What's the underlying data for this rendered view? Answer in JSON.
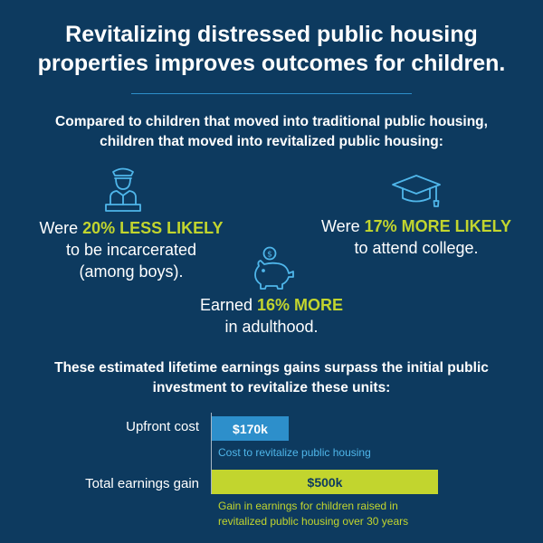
{
  "header": {
    "title_line1": "Revitalizing distressed public housing",
    "title_line2": "properties improves outcomes for children."
  },
  "intro": {
    "line1": "Compared to children that moved into traditional public housing,",
    "line2": "children that moved into revitalized public housing:"
  },
  "stats": {
    "incarceration": {
      "icon": "police-officer-icon",
      "prefix": "Were ",
      "highlight": "20% LESS LIKELY",
      "line2": "to be incarcerated",
      "line3": "(among boys)."
    },
    "college": {
      "icon": "graduation-cap-icon",
      "prefix": "Were ",
      "highlight": "17% MORE LIKELY",
      "line2": "to attend college."
    },
    "earnings": {
      "icon": "piggy-bank-icon",
      "prefix": "Earned ",
      "highlight": "16% MORE",
      "line2": "in adulthood."
    }
  },
  "summary": {
    "line1": "These estimated lifetime earnings gains surpass the initial public",
    "line2": "investment to revitalize these units:"
  },
  "colors": {
    "background": "#0d3a5f",
    "accent_blue": "#2d8fcb",
    "accent_green": "#c2d52e",
    "caption_blue": "#4fb6ea"
  },
  "chart_data": {
    "type": "bar",
    "orientation": "horizontal",
    "categories": [
      "Upfront cost",
      "Total earnings gain"
    ],
    "values": [
      170,
      500
    ],
    "value_labels": [
      "$170k",
      "$500k"
    ],
    "captions": [
      [
        "Cost to revitalize public housing"
      ],
      [
        "Gain in earnings for children raised in",
        "revitalized public housing over 30 years"
      ]
    ],
    "unit": "thousand dollars",
    "xlim": [
      0,
      500
    ],
    "grid": false,
    "legend": "none",
    "title": "",
    "xlabel": "",
    "ylabel": ""
  }
}
